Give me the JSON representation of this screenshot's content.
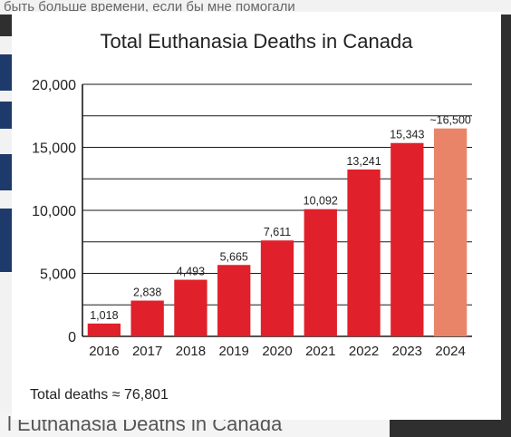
{
  "background": {
    "top_text": "быть больше времени, если бы мне помогали",
    "bottom_text": "l Euthanasia Deaths in Canada"
  },
  "colors": {
    "bar": "#e0202a",
    "bar_estimate": "#ea8468",
    "grid": "#1a1a1a",
    "text": "#222222"
  },
  "chart_data": {
    "type": "bar",
    "title": "Total Euthanasia Deaths in Canada",
    "categories": [
      "2016",
      "2017",
      "2018",
      "2019",
      "2020",
      "2021",
      "2022",
      "2023",
      "2024"
    ],
    "values": [
      1018,
      2838,
      4493,
      5665,
      7611,
      10092,
      13241,
      15343,
      16500
    ],
    "data_labels": [
      "1,018",
      "2,838",
      "4,493",
      "5,665",
      "7,611",
      "10,092",
      "13,241",
      "15,343",
      "~16,500"
    ],
    "estimated": [
      false,
      false,
      false,
      false,
      false,
      false,
      false,
      false,
      true
    ],
    "ylim": [
      0,
      20000
    ],
    "y_ticks": [
      0,
      5000,
      10000,
      15000,
      20000
    ],
    "y_tick_labels": [
      "0",
      "5,000",
      "10,000",
      "15,000",
      "20,000"
    ],
    "grid_step": 2500,
    "grid": true,
    "xlabel": "",
    "ylabel": ""
  },
  "footer": {
    "total_label": "Total deaths ≈ 76,801"
  }
}
